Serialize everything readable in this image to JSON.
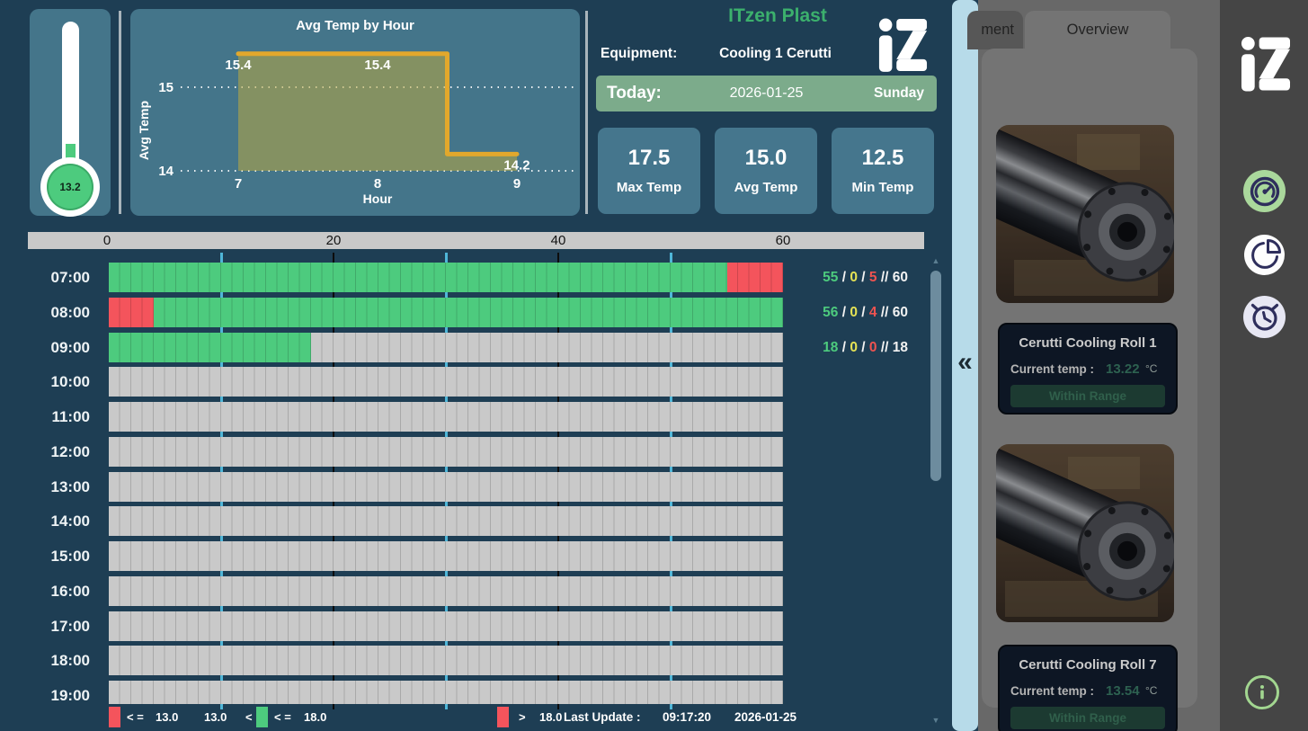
{
  "brand": {
    "name": "ITzen Plast",
    "logo_text": "iZ"
  },
  "header": {
    "equipment_label": "Equipment:",
    "equipment_value": "Cooling 1 Cerutti",
    "today_label": "Today:",
    "date": "2026-01-25",
    "weekday": "Sunday"
  },
  "stats": [
    {
      "value": "17.5",
      "label": "Max Temp"
    },
    {
      "value": "15.0",
      "label": "Avg Temp"
    },
    {
      "value": "12.5",
      "label": "Min Temp"
    }
  ],
  "thermometer": {
    "value": "13.2"
  },
  "chart_data": {
    "type": "area",
    "step": true,
    "title": "Avg Temp by Hour",
    "xlabel": "Hour",
    "ylabel": "Avg Temp",
    "x": [
      7,
      8,
      9
    ],
    "values": [
      15.4,
      15.4,
      14.2
    ],
    "point_labels": [
      "15.4",
      "15.4",
      "14.2"
    ],
    "yticks": [
      15,
      14
    ],
    "ylim": [
      13.95,
      15.95
    ],
    "grid": "dotted-horizontal",
    "legend_position": "none",
    "line_color": "#e2a82c",
    "fill_color": "rgba(186,168,66,0.55)"
  },
  "timeline": {
    "axis_ticks": [
      0,
      20,
      40,
      60
    ],
    "minutes_per_row": 60,
    "rows": [
      {
        "time": "07:00",
        "segments": [
          {
            "status": "in_range",
            "start": 0,
            "minutes": 55
          },
          {
            "status": "out_of_range",
            "start": 55,
            "minutes": 5
          }
        ],
        "counts": {
          "in_range": 55,
          "warning": 0,
          "out": 5,
          "total": 60
        }
      },
      {
        "time": "08:00",
        "segments": [
          {
            "status": "out_of_range",
            "start": 0,
            "minutes": 4
          },
          {
            "status": "in_range",
            "start": 4,
            "minutes": 56
          }
        ],
        "counts": {
          "in_range": 56,
          "warning": 0,
          "out": 4,
          "total": 60
        }
      },
      {
        "time": "09:00",
        "segments": [
          {
            "status": "in_range",
            "start": 0,
            "minutes": 18
          },
          {
            "status": "no_data",
            "start": 18,
            "minutes": 42
          }
        ],
        "counts": {
          "in_range": 18,
          "warning": 0,
          "out": 0,
          "total": 18
        }
      },
      {
        "time": "10:00",
        "segments": [
          {
            "status": "no_data",
            "start": 0,
            "minutes": 60
          }
        ]
      },
      {
        "time": "11:00",
        "segments": [
          {
            "status": "no_data",
            "start": 0,
            "minutes": 60
          }
        ]
      },
      {
        "time": "12:00",
        "segments": [
          {
            "status": "no_data",
            "start": 0,
            "minutes": 60
          }
        ]
      },
      {
        "time": "13:00",
        "segments": [
          {
            "status": "no_data",
            "start": 0,
            "minutes": 60
          }
        ]
      },
      {
        "time": "14:00",
        "segments": [
          {
            "status": "no_data",
            "start": 0,
            "minutes": 60
          }
        ]
      },
      {
        "time": "15:00",
        "segments": [
          {
            "status": "no_data",
            "start": 0,
            "minutes": 60
          }
        ]
      },
      {
        "time": "16:00",
        "segments": [
          {
            "status": "no_data",
            "start": 0,
            "minutes": 60
          }
        ]
      },
      {
        "time": "17:00",
        "segments": [
          {
            "status": "no_data",
            "start": 0,
            "minutes": 60
          }
        ]
      },
      {
        "time": "18:00",
        "segments": [
          {
            "status": "no_data",
            "start": 0,
            "minutes": 60
          }
        ]
      },
      {
        "time": "19:00",
        "segments": [
          {
            "status": "no_data",
            "start": 0,
            "minutes": 60
          }
        ]
      }
    ],
    "legend": {
      "low": {
        "swatch_color": "#f4545c",
        "op": "< =",
        "value": "13.0"
      },
      "mid": {
        "lower": "13.0",
        "lower_op": "<",
        "swatch_color": "#4dcb7e",
        "upper_op": "< =",
        "upper": "18.0"
      },
      "high": {
        "swatch_color": "#f4545c",
        "op": ">",
        "value": "18.0"
      }
    },
    "last_update": {
      "label": "Last Update :",
      "time": "09:17:20",
      "date": "2026-01-25"
    }
  },
  "right_panel": {
    "tabs": [
      {
        "label": "ment"
      },
      {
        "label": "Overview"
      }
    ],
    "active_tab": "Overview",
    "items": [
      {
        "title": "Cerutti Cooling Roll 1",
        "temp_label": "Current temp :",
        "temp_value": "13.22",
        "temp_unit": "°C",
        "status": "Within Range"
      },
      {
        "title": "Cerutti Cooling Roll 7",
        "temp_label": "Current temp :",
        "temp_value": "13.54",
        "temp_unit": "°C",
        "status": "Within Range"
      }
    ]
  },
  "sidebar": {
    "logo_text": "iZ",
    "icons": [
      "gauge",
      "pie-chart",
      "alarm-clock"
    ],
    "info_icon": "i"
  },
  "colors": {
    "background": "#1e3e54",
    "panel": "#44758a",
    "accent_green": "#3cb06d",
    "today_bar": "#7cab8b",
    "bar_in_range": "#4dcb7e",
    "bar_out_of_range": "#f4545c",
    "bar_no_data": "#c9c9c9",
    "grid_cyan": "#4fb6d8",
    "splitter": "#b7dbe9",
    "right_panel_bg": "#686868",
    "sidebar_bg": "#454545",
    "card_bg": "#0d1624",
    "status_text": "#305f4b",
    "counts_yellow": "#e6e355"
  }
}
